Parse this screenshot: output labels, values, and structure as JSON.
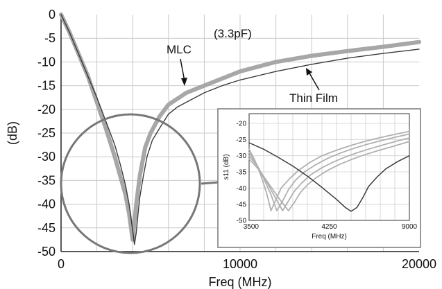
{
  "chart_data": [
    {
      "type": "line",
      "title": "(3.3pF)",
      "xlabel": "Freq (MHz)",
      "ylabel": "(dB)",
      "xlim": [
        0,
        20000
      ],
      "ylim": [
        -50,
        0
      ],
      "x_tick_labels": [
        "0",
        "10000",
        "20000"
      ],
      "y_tick_labels": [
        "0",
        "-5",
        "-10",
        "-15",
        "-20",
        "-25",
        "-30",
        "-35",
        "-40",
        "-45",
        "-50"
      ],
      "grid": true,
      "annotations": [
        "MLC",
        "Thin Film"
      ],
      "series": [
        {
          "name": "MLC",
          "color": "#a7a7a7",
          "x": [
            0,
            500,
            1000,
            1500,
            2000,
            2500,
            3000,
            3300,
            3600,
            3800,
            4000,
            4200,
            4400,
            4700,
            5000,
            5500,
            6000,
            7000,
            8000,
            9000,
            10000,
            12000,
            14000,
            16000,
            18000,
            20000
          ],
          "y": [
            0,
            -4,
            -8.5,
            -13,
            -18.5,
            -24,
            -30,
            -34,
            -38,
            -42,
            -47.5,
            -40,
            -34,
            -28,
            -25,
            -21.5,
            -19,
            -16.5,
            -15,
            -13.5,
            -12,
            -10,
            -8.7,
            -7.7,
            -6.8,
            -5.8
          ]
        },
        {
          "name": "Thin Film",
          "color": "#3a3a3a",
          "x": [
            0,
            500,
            1000,
            1500,
            2000,
            2500,
            3000,
            3300,
            3600,
            3800,
            4000,
            4100,
            4200,
            4300,
            4400,
            4600,
            4800,
            5100,
            5500,
            6000,
            6500,
            7000,
            8000,
            9000,
            10000,
            12000,
            14000,
            16000,
            18000,
            20000
          ],
          "y": [
            0,
            -4,
            -8.5,
            -13,
            -17.5,
            -22.5,
            -27.5,
            -31.5,
            -36,
            -40,
            -45.5,
            -48.5,
            -46,
            -42,
            -38.5,
            -34,
            -30,
            -26.5,
            -24,
            -21,
            -19.5,
            -18.5,
            -16.5,
            -15,
            -13.8,
            -12,
            -10.5,
            -9.2,
            -8.2,
            -7.3
          ]
        }
      ]
    },
    {
      "type": "line",
      "title": "",
      "xlabel": "Freq (MHz)",
      "ylabel": "s11 (dB)",
      "xlim": [
        3500,
        9000
      ],
      "ylim": [
        -50,
        -17
      ],
      "x_tick_labels": [
        "3500",
        "4250",
        "9000"
      ],
      "y_tick_labels": [
        "-20",
        "-25",
        "-30",
        "-35",
        "-40",
        "-45",
        "-50"
      ],
      "grid": true,
      "series": [
        {
          "color": "#b0b0b0",
          "x": [
            3500,
            3700,
            3900,
            4100,
            4250,
            4400,
            4600,
            4900,
            5200,
            5600,
            6000,
            6500,
            7000,
            7500,
            8000,
            8500,
            9000
          ],
          "y": [
            -28,
            -31.5,
            -36,
            -41.5,
            -47,
            -44,
            -40,
            -37,
            -34.5,
            -32,
            -30,
            -28.3,
            -26.8,
            -25.5,
            -24.4,
            -23.4,
            -22.5
          ]
        },
        {
          "color": "#b0b0b0",
          "x": [
            3500,
            3750,
            4000,
            4250,
            4450,
            4650,
            4850,
            5100,
            5400,
            5800,
            6200,
            6600,
            7000,
            7500,
            8000,
            8500,
            9000
          ],
          "y": [
            -29,
            -32.5,
            -37,
            -42,
            -47,
            -44,
            -40.5,
            -37.5,
            -35,
            -32.7,
            -30.8,
            -29.3,
            -28,
            -26.6,
            -25.4,
            -24.3,
            -23.3
          ]
        },
        {
          "color": "#b0b0b0",
          "x": [
            3500,
            3800,
            4100,
            4400,
            4650,
            4850,
            5050,
            5300,
            5600,
            6000,
            6400,
            6800,
            7200,
            7700,
            8200,
            8600,
            9000
          ],
          "y": [
            -30,
            -33.5,
            -38,
            -43,
            -47,
            -44,
            -41,
            -38.5,
            -36,
            -33.7,
            -31.9,
            -30.4,
            -29.1,
            -27.7,
            -26.4,
            -25.4,
            -24.5
          ]
        },
        {
          "color": "#b0b0b0",
          "x": [
            3500,
            3850,
            4200,
            4550,
            4850,
            5050,
            5250,
            5500,
            5800,
            6200,
            6600,
            7000,
            7400,
            7900,
            8400,
            8700,
            9000
          ],
          "y": [
            -31,
            -34.5,
            -39,
            -43.5,
            -47,
            -44.5,
            -41.5,
            -39,
            -36.8,
            -34.5,
            -32.7,
            -31.2,
            -29.9,
            -28.5,
            -27.2,
            -26.4,
            -25.6
          ]
        },
        {
          "color": "#3a3a3a",
          "x": [
            3500,
            4000,
            4500,
            5000,
            5500,
            6000,
            6500,
            6800,
            7000,
            7200,
            7400,
            7600,
            7900,
            8200,
            8600,
            9000
          ],
          "y": [
            -26,
            -28,
            -30.5,
            -33.2,
            -36.3,
            -39.8,
            -43.5,
            -46,
            -47.2,
            -46,
            -43,
            -39.5,
            -36.5,
            -34,
            -31.8,
            -30
          ]
        }
      ]
    }
  ]
}
